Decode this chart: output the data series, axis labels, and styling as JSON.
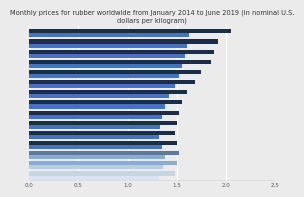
{
  "title_line1": "Monthly prices for rubber worldwide from January 2014 to June 2019 (in nominal U.S.",
  "title_line2": "dollars per kilogram)",
  "title_fontsize": 4.8,
  "bar_pairs": [
    {
      "dark": 2.05,
      "light": 1.62
    },
    {
      "dark": 1.92,
      "light": 1.6
    },
    {
      "dark": 1.88,
      "light": 1.58
    },
    {
      "dark": 1.85,
      "light": 1.55
    },
    {
      "dark": 1.75,
      "light": 1.52
    },
    {
      "dark": 1.68,
      "light": 1.48
    },
    {
      "dark": 1.6,
      "light": 1.42
    },
    {
      "dark": 1.55,
      "light": 1.38
    },
    {
      "dark": 1.52,
      "light": 1.35
    },
    {
      "dark": 1.5,
      "light": 1.33
    },
    {
      "dark": 1.48,
      "light": 1.32
    },
    {
      "dark": 1.5,
      "light": 1.35
    },
    {
      "dark": 1.52,
      "light": 1.38
    },
    {
      "dark": 1.5,
      "light": 1.36
    },
    {
      "dark": 1.48,
      "light": 1.32
    }
  ],
  "colors": [
    [
      "#1a2e4a",
      "#4472c4"
    ],
    [
      "#1a2e4a",
      "#4472c4"
    ],
    [
      "#1a2e4a",
      "#4472c4"
    ],
    [
      "#1a2e4a",
      "#4472c4"
    ],
    [
      "#1a2e4a",
      "#4472c4"
    ],
    [
      "#1a2e4a",
      "#4472c4"
    ],
    [
      "#1a2e4a",
      "#4472c4"
    ],
    [
      "#1a2e4a",
      "#4472c4"
    ],
    [
      "#1a2e4a",
      "#4472c4"
    ],
    [
      "#1a2e4a",
      "#4472c4"
    ],
    [
      "#1a2e4a",
      "#4472c4"
    ],
    [
      "#1a2e4a",
      "#4472c4"
    ],
    [
      "#5a7aa0",
      "#8aabd4"
    ],
    [
      "#8aabd4",
      "#b8cce4"
    ],
    [
      "#c8d4e4",
      "#d8e4f0"
    ]
  ],
  "dark_color": "#1a2e4a",
  "light_color": "#4472c4",
  "background_color": "#ebebeb",
  "plot_bg_color": "#ebebeb",
  "grid_color": "#ffffff",
  "xlim": [
    0,
    2.5
  ],
  "xticks": [
    0.0,
    0.5,
    1.0,
    1.5,
    2.0,
    2.5
  ],
  "tick_fontsize": 4.0
}
